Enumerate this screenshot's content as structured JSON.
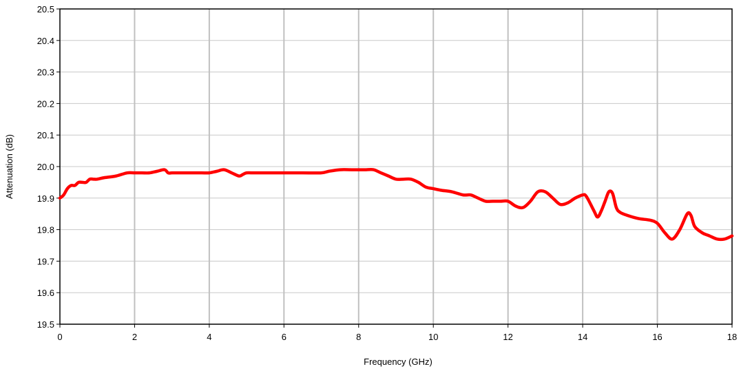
{
  "chart_data": {
    "type": "line",
    "title": "",
    "xlabel": "Frequency (GHz)",
    "ylabel": "Attenuation (dB)",
    "xlim": [
      0,
      18
    ],
    "ylim": [
      19.5,
      20.5
    ],
    "x_ticks": [
      0,
      2,
      4,
      6,
      8,
      10,
      12,
      14,
      16,
      18
    ],
    "y_ticks": [
      19.5,
      19.6,
      19.7,
      19.8,
      19.9,
      20.0,
      20.1,
      20.2,
      20.3,
      20.4,
      20.5
    ],
    "x_tick_labels": [
      "0",
      "2",
      "4",
      "6",
      "8",
      "10",
      "12",
      "14",
      "16",
      "18"
    ],
    "y_tick_labels": [
      "19.5",
      "19.6",
      "19.7",
      "19.8",
      "19.9",
      "20.0",
      "20.1",
      "20.2",
      "20.3",
      "20.4",
      "20.5"
    ],
    "grid": {
      "vertical": true,
      "horizontal": true
    },
    "legend": "none",
    "colors": {
      "series": "#ff0000",
      "vgrid": "#c0c0c0",
      "hgrid": "#c8c8c8",
      "axis": "#000000"
    },
    "series": [
      {
        "x": [
          0.0,
          0.1,
          0.2,
          0.3,
          0.4,
          0.5,
          0.6,
          0.7,
          0.8,
          0.9,
          1.0,
          1.2,
          1.5,
          1.8,
          2.0,
          2.2,
          2.4,
          2.6,
          2.8,
          2.9,
          3.0,
          3.2,
          3.5,
          3.8,
          4.0,
          4.2,
          4.4,
          4.6,
          4.8,
          4.9,
          5.0,
          5.2,
          5.5,
          6.0,
          6.5,
          7.0,
          7.2,
          7.5,
          7.8,
          8.0,
          8.2,
          8.4,
          8.6,
          8.8,
          9.0,
          9.2,
          9.4,
          9.6,
          9.8,
          10.0,
          10.2,
          10.5,
          10.8,
          11.0,
          11.2,
          11.4,
          11.6,
          11.8,
          12.0,
          12.2,
          12.4,
          12.6,
          12.8,
          13.0,
          13.2,
          13.4,
          13.6,
          13.8,
          14.0,
          14.1,
          14.3,
          14.4,
          14.5,
          14.6,
          14.7,
          14.8,
          14.9,
          15.0,
          15.2,
          15.5,
          15.8,
          16.0,
          16.2,
          16.4,
          16.6,
          16.8,
          16.9,
          17.0,
          17.2,
          17.4,
          17.6,
          17.8,
          18.0
        ],
        "y": [
          19.9,
          19.91,
          19.93,
          19.94,
          19.94,
          19.95,
          19.95,
          19.95,
          19.96,
          19.96,
          19.96,
          19.965,
          19.97,
          19.98,
          19.98,
          19.98,
          19.98,
          19.985,
          19.99,
          19.98,
          19.98,
          19.98,
          19.98,
          19.98,
          19.98,
          19.985,
          19.99,
          19.98,
          19.97,
          19.975,
          19.98,
          19.98,
          19.98,
          19.98,
          19.98,
          19.98,
          19.985,
          19.99,
          19.99,
          19.99,
          19.99,
          19.99,
          19.98,
          19.97,
          19.96,
          19.96,
          19.96,
          19.95,
          19.935,
          19.93,
          19.925,
          19.92,
          19.91,
          19.91,
          19.9,
          19.89,
          19.89,
          19.89,
          19.89,
          19.875,
          19.87,
          19.89,
          19.92,
          19.92,
          19.9,
          19.88,
          19.885,
          19.9,
          19.91,
          19.905,
          19.86,
          19.84,
          19.86,
          19.89,
          19.92,
          19.915,
          19.87,
          19.855,
          19.845,
          19.835,
          19.83,
          19.82,
          19.79,
          19.77,
          19.8,
          19.85,
          19.845,
          19.81,
          19.79,
          19.78,
          19.77,
          19.77,
          19.78
        ]
      }
    ]
  }
}
